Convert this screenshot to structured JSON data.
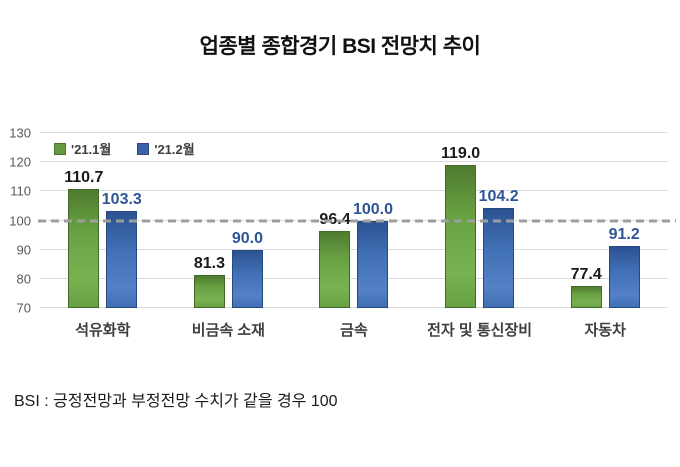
{
  "title": "업종별 종합경기 BSI 전망치 추이",
  "footnote": "BSI : 긍정전망과 부정전망 수치가 같을 경우 100",
  "legend": [
    {
      "label": "'21.1월",
      "color": "#66993f"
    },
    {
      "label": "'21.2월",
      "color": "#3a62a8"
    }
  ],
  "colors": {
    "series_green": "#68a142",
    "series_blue": "#4070b5",
    "reference_line": "#9e9e9e",
    "gridline": "#dcdcdc"
  },
  "chart_data": {
    "type": "bar",
    "title": "업종별 종합경기 BSI 전망치 추이",
    "categories": [
      "석유화학",
      "비금속 소재",
      "금속",
      "전자 및 통신장비",
      "자동차"
    ],
    "series": [
      {
        "name": "'21.1월",
        "color": "#68a142",
        "label_color": "#1a1a1a",
        "values": [
          110.7,
          81.3,
          96.4,
          119.0,
          77.4
        ]
      },
      {
        "name": "'21.2월",
        "color": "#4070b5",
        "label_color": "#2e5596",
        "values": [
          103.3,
          90.0,
          100.0,
          104.2,
          91.2
        ]
      }
    ],
    "xlabel": "",
    "ylabel": "",
    "ylim": [
      70,
      130
    ],
    "yticks": [
      70,
      80,
      90,
      100,
      110,
      120,
      130
    ],
    "reference_line": 100,
    "grid": true,
    "legend_position": "top-left"
  }
}
